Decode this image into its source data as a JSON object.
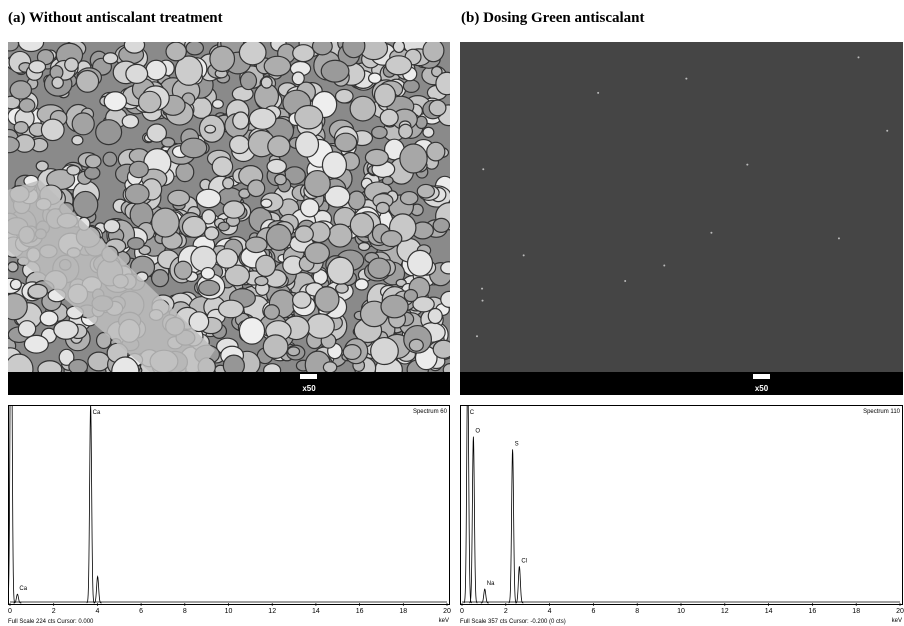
{
  "panels": [
    {
      "title": "(a) Without  antiscalant  treatment",
      "magnification": "x50",
      "spectrum": {
        "name": "Spectrum 60",
        "footer": "Full Scale 224 cts Cursor: 0.000",
        "unit": "keV",
        "xlim": [
          0,
          20
        ],
        "xticks": [
          0,
          2,
          4,
          6,
          8,
          10,
          12,
          14,
          16,
          18,
          20
        ],
        "ylim": [
          0,
          224
        ],
        "peaks": [
          {
            "label": null,
            "x": 0.05,
            "y": 400
          },
          {
            "label": "Ca",
            "x": 0.34,
            "y": 10
          },
          {
            "label": "Ca",
            "x": 3.69,
            "y": 224
          },
          {
            "label": null,
            "x": 4.01,
            "y": 30
          }
        ]
      }
    },
    {
      "title": "(b) Dosing Green antiscalant",
      "magnification": "x50",
      "spectrum": {
        "name": "Spectrum 110",
        "footer": "Full Scale 357 cts Cursor: -0.200  (0 cts)",
        "unit": "keV",
        "xlim": [
          0,
          20
        ],
        "xticks": [
          0,
          2,
          4,
          6,
          8,
          10,
          12,
          14,
          16,
          18,
          20
        ],
        "ylim": [
          0,
          357
        ],
        "peaks": [
          {
            "label": "C",
            "x": 0.26,
            "y": 420
          },
          {
            "label": "O",
            "x": 0.52,
            "y": 300
          },
          {
            "label": "Na",
            "x": 1.04,
            "y": 25
          },
          {
            "label": "S",
            "x": 2.31,
            "y": 277
          },
          {
            "label": "Cl",
            "x": 2.62,
            "y": 66
          }
        ]
      }
    }
  ]
}
